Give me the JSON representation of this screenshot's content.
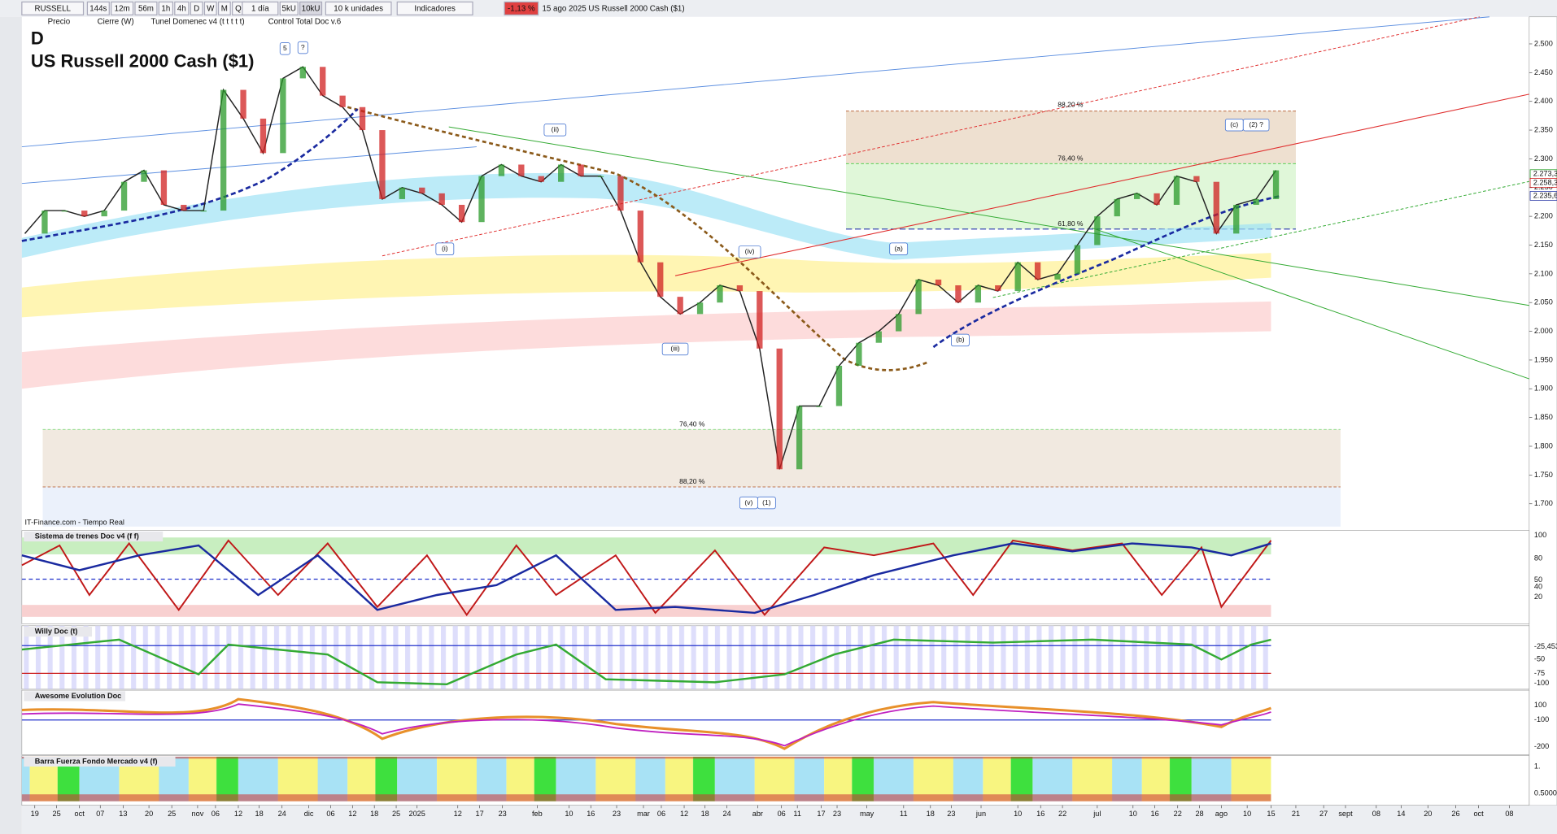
{
  "toolbar": {
    "symbol": "RUSSELL",
    "timeframes": [
      "144s",
      "12m",
      "56m",
      "1h",
      "4h",
      "D",
      "W",
      "M",
      "Q"
    ],
    "period": "1 día",
    "units": [
      "5kU",
      "10kU"
    ],
    "units_select": "10 k unidades",
    "indicators": "Indicadores",
    "change": "-1,13 %",
    "info": "15 ago 2025 US Russell 2000 Cash ($1)"
  },
  "legend_row": [
    "Precio",
    "Cierre (W)",
    "Tunel Domenec v4 (t t t t t)",
    "Control Total Doc v.6"
  ],
  "chart": {
    "timeframe": "D",
    "title": "US Russell 2000 Cash ($1)",
    "source": "IT-Finance.com - Tiempo Real",
    "ylim": [
      1.662,
      2.547
    ],
    "yticks": [
      {
        "value": 1.7,
        "label": "1.700"
      },
      {
        "value": 1.75,
        "label": "1.750"
      },
      {
        "value": 1.8,
        "label": "1.800"
      },
      {
        "value": 1.85,
        "label": "1.850"
      },
      {
        "value": 1.9,
        "label": "1.900"
      },
      {
        "value": 1.95,
        "label": "1.950"
      },
      {
        "value": 2.0,
        "label": "2.000"
      },
      {
        "value": 2.05,
        "label": "2.050"
      },
      {
        "value": 2.1,
        "label": "2.100"
      },
      {
        "value": 2.15,
        "label": "2.150"
      },
      {
        "value": 2.2,
        "label": "2.200"
      },
      {
        "value": 2.25,
        "label": "2.250"
      },
      {
        "value": 2.3,
        "label": "2.300"
      },
      {
        "value": 2.35,
        "label": "2.350"
      },
      {
        "value": 2.4,
        "label": "2.400"
      },
      {
        "value": 2.45,
        "label": "2.450"
      },
      {
        "value": 2.5,
        "label": "2.500"
      }
    ],
    "price": [
      2.17,
      2.21,
      2.21,
      2.2,
      2.21,
      2.26,
      2.28,
      2.22,
      2.21,
      2.21,
      2.42,
      2.37,
      2.31,
      2.44,
      2.46,
      2.41,
      2.39,
      2.35,
      2.23,
      2.25,
      2.24,
      2.22,
      2.19,
      2.27,
      2.29,
      2.27,
      2.26,
      2.29,
      2.27,
      2.27,
      2.21,
      2.12,
      2.06,
      2.03,
      2.05,
      2.08,
      2.07,
      1.97,
      1.76,
      1.87,
      1.87,
      1.94,
      1.98,
      2.0,
      2.03,
      2.09,
      2.08,
      2.05,
      2.08,
      2.07,
      2.12,
      2.09,
      2.1,
      2.15,
      2.2,
      2.23,
      2.24,
      2.22,
      2.27,
      2.26,
      2.17,
      2.22,
      2.23,
      2.28
    ],
    "last_labels": [
      {
        "value": 2.2733,
        "label": "2.273,3",
        "color": "#1a9a1a"
      },
      {
        "value": 2.2583,
        "label": "2.258,3",
        "color": "#d01010"
      },
      {
        "value": 2.2356,
        "label": "2.235,6",
        "color": "#1a2aa0"
      }
    ],
    "waves": [
      "5",
      "?",
      "(i)",
      "(ii)",
      "(iii)",
      "(iv)",
      "(v)",
      "(1)",
      "(a)",
      "(b)",
      "(c)",
      "(2) ?"
    ],
    "fib_labels": [
      "88,20 %",
      "76,40 %",
      "61,80 %",
      "76,40 %",
      "88,20 %"
    ]
  },
  "panels": [
    {
      "title": "Sistema de trenes Doc v4 (f f)",
      "ticks": [
        "100",
        "80",
        "50",
        "40",
        "20"
      ]
    },
    {
      "title": "Willy Doc (t)",
      "ticks": [
        "-25,453",
        "-50",
        "-75",
        "-100"
      ]
    },
    {
      "title": "Awesome Evolution Doc",
      "ticks": [
        "100",
        "-100",
        "-200"
      ]
    },
    {
      "title": "Barra Fuerza Fondo Mercado v4 (f)",
      "ticks": [
        "1.",
        "0.5000"
      ]
    }
  ],
  "x_axis": [
    "19",
    "25",
    "oct",
    "07",
    "13",
    "20",
    "25",
    "nov",
    "06",
    "12",
    "18",
    "24",
    "dic",
    "06",
    "12",
    "18",
    "25",
    "2025",
    "12",
    "17",
    "23",
    "feb",
    "10",
    "16",
    "23",
    "mar",
    "06",
    "12",
    "18",
    "24",
    "abr",
    "06",
    "11",
    "17",
    "23",
    "may",
    "11",
    "18",
    "23",
    "jun",
    "10",
    "16",
    "22",
    "jul",
    "10",
    "16",
    "22",
    "28",
    "ago",
    "10",
    "15",
    "21",
    "27",
    "sept",
    "08",
    "14",
    "20",
    "26",
    "oct",
    "08"
  ]
}
